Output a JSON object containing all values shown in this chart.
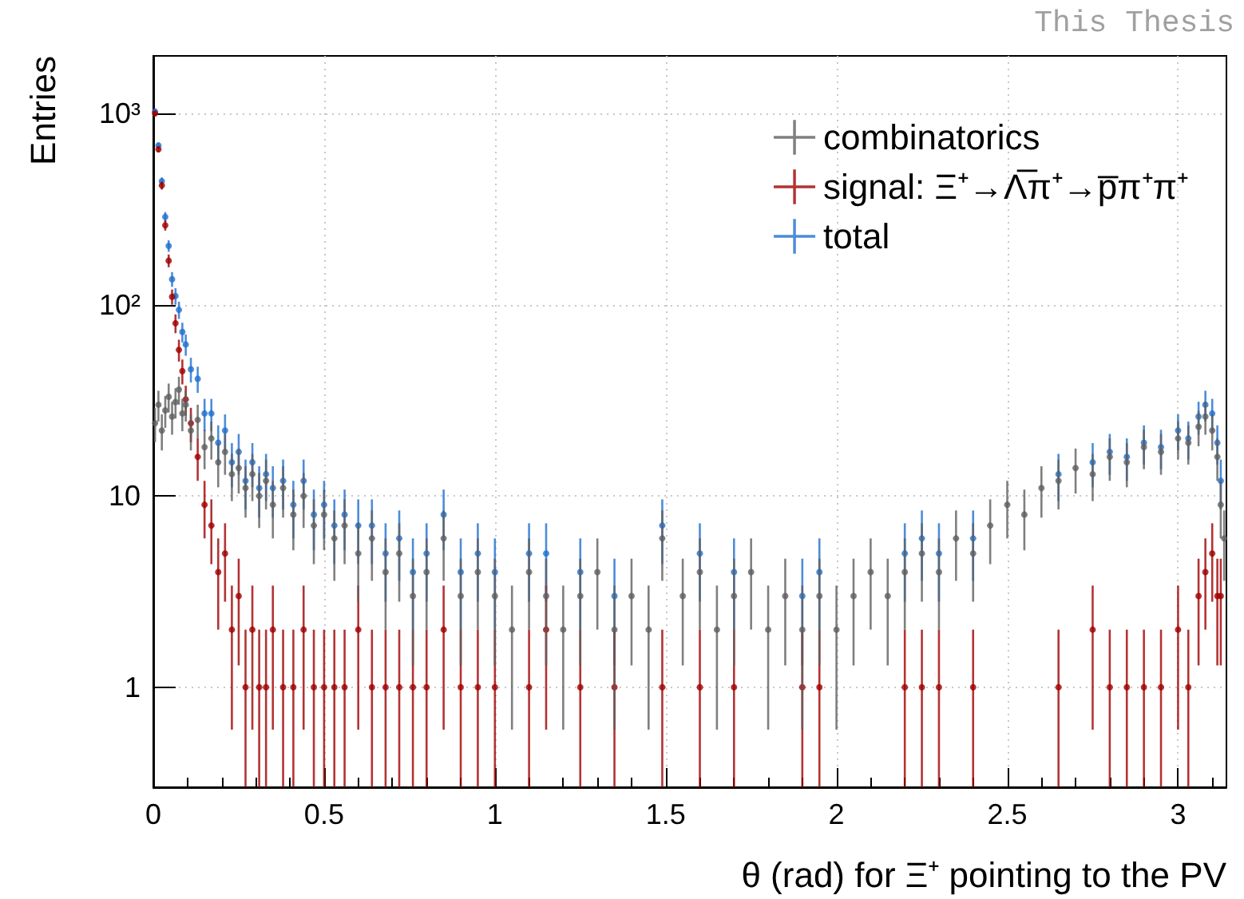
{
  "chart_data": {
    "type": "scatter",
    "xlabel": "θ (rad) for Ξ⁺ pointing to the PV",
    "ylabel": "Entries",
    "annotations": [
      "This Thesis"
    ],
    "x": [
      0.005,
      0.015,
      0.025,
      0.035,
      0.045,
      0.055,
      0.065,
      0.075,
      0.085,
      0.095,
      0.11,
      0.13,
      0.15,
      0.17,
      0.19,
      0.21,
      0.23,
      0.25,
      0.27,
      0.29,
      0.31,
      0.33,
      0.35,
      0.38,
      0.41,
      0.44,
      0.47,
      0.5,
      0.53,
      0.56,
      0.6,
      0.64,
      0.68,
      0.72,
      0.76,
      0.8,
      0.85,
      0.9,
      0.95,
      1.0,
      1.05,
      1.1,
      1.15,
      1.2,
      1.25,
      1.3,
      1.35,
      1.4,
      1.45,
      1.49,
      1.55,
      1.6,
      1.65,
      1.7,
      1.75,
      1.8,
      1.85,
      1.9,
      1.95,
      2.0,
      2.05,
      2.1,
      2.15,
      2.2,
      2.25,
      2.3,
      2.35,
      2.4,
      2.45,
      2.5,
      2.55,
      2.6,
      2.65,
      2.7,
      2.75,
      2.8,
      2.85,
      2.9,
      2.95,
      3.0,
      3.03,
      3.06,
      3.08,
      3.1,
      3.115,
      3.125,
      3.135
    ],
    "series": [
      {
        "name": "combinatorics",
        "color": "#5f5f5f",
        "values": [
          24,
          30,
          22,
          28,
          33,
          26,
          31,
          36,
          27,
          30,
          22,
          25,
          18,
          20,
          15,
          17,
          13,
          14,
          11,
          13,
          10,
          12,
          9,
          11,
          8,
          10,
          7,
          8,
          6,
          7,
          5,
          6,
          4,
          5,
          3,
          4,
          6,
          3,
          4,
          3,
          2,
          4,
          3,
          2,
          3,
          4,
          2,
          3,
          2,
          6,
          3,
          4,
          2,
          3,
          4,
          2,
          3,
          2,
          3,
          2,
          3,
          4,
          3,
          4,
          5,
          4,
          6,
          5,
          7,
          9,
          8,
          11,
          12,
          14,
          13,
          16,
          15,
          18,
          17,
          20,
          19,
          23,
          26,
          22,
          16,
          9,
          6
        ],
        "errors": [
          4.9,
          5.5,
          4.7,
          5.3,
          5.7,
          5.1,
          5.6,
          6,
          5.2,
          5.5,
          4.7,
          5,
          4.2,
          4.5,
          3.9,
          4.1,
          3.6,
          3.7,
          3.3,
          3.6,
          3.2,
          3.5,
          3,
          3.3,
          2.8,
          3.2,
          2.6,
          2.8,
          2.4,
          2.6,
          2.2,
          2.4,
          2,
          2.2,
          1.7,
          2,
          2.4,
          1.7,
          2,
          1.7,
          1.4,
          2,
          1.7,
          1.4,
          1.7,
          2,
          1.4,
          1.7,
          1.4,
          2.4,
          1.7,
          2,
          1.4,
          1.7,
          2,
          1.4,
          1.7,
          1.4,
          1.7,
          1.4,
          1.7,
          2,
          1.7,
          2,
          2.2,
          2,
          2.4,
          2.2,
          2.6,
          3,
          2.8,
          3.3,
          3.5,
          3.7,
          3.6,
          4,
          3.9,
          4.2,
          4.1,
          4.5,
          4.4,
          4.8,
          5.1,
          4.7,
          4,
          3,
          2.4
        ]
      },
      {
        "name": "signal: Ξ⁺→Λ̅π⁺→p̅π⁺π⁺",
        "color": "#a00000",
        "values": [
          1000,
          650,
          420,
          260,
          170,
          110,
          80,
          58,
          45,
          32,
          24,
          16,
          9,
          7,
          4,
          5,
          2,
          3,
          1,
          2,
          1,
          1,
          2,
          1,
          1,
          2,
          1,
          1,
          1,
          1,
          2,
          1,
          1,
          1,
          1,
          1,
          2,
          1,
          1,
          1,
          null,
          1,
          2,
          null,
          1,
          null,
          1,
          null,
          null,
          1,
          null,
          1,
          null,
          1,
          null,
          null,
          null,
          1,
          1,
          null,
          null,
          null,
          null,
          1,
          1,
          1,
          null,
          1,
          null,
          null,
          null,
          null,
          1,
          null,
          2,
          1,
          1,
          1,
          1,
          2,
          1,
          3,
          4,
          5,
          3,
          3,
          null
        ],
        "errors": [
          32,
          25,
          20,
          16,
          13,
          10,
          9,
          7.6,
          6.7,
          5.7,
          4.9,
          4,
          3,
          2.6,
          2,
          2.2,
          1.4,
          1.7,
          [
            0.3,
            2
          ],
          1.4,
          [
            0.3,
            2
          ],
          [
            0.3,
            2
          ],
          1.4,
          [
            0.3,
            2
          ],
          [
            0.3,
            2
          ],
          1.4,
          [
            0.3,
            2
          ],
          [
            0.3,
            2
          ],
          [
            0.3,
            2
          ],
          [
            0.3,
            2
          ],
          1.4,
          [
            0.3,
            2
          ],
          [
            0.3,
            2
          ],
          [
            0.3,
            2
          ],
          [
            0.3,
            2
          ],
          [
            0.3,
            2
          ],
          1.4,
          [
            0.3,
            2
          ],
          [
            0.3,
            2
          ],
          [
            0.3,
            2
          ],
          null,
          [
            0.3,
            2
          ],
          1.4,
          null,
          [
            0.3,
            2
          ],
          null,
          [
            0.3,
            2
          ],
          null,
          null,
          [
            0.3,
            2
          ],
          null,
          [
            0.3,
            2
          ],
          null,
          [
            0.3,
            2
          ],
          null,
          null,
          null,
          [
            0.3,
            2
          ],
          [
            0.3,
            2
          ],
          null,
          null,
          null,
          null,
          [
            0.3,
            2
          ],
          [
            0.3,
            2
          ],
          [
            0.3,
            2
          ],
          null,
          [
            0.3,
            2
          ],
          null,
          null,
          null,
          null,
          [
            0.3,
            2
          ],
          null,
          1.4,
          [
            0.3,
            2
          ],
          [
            0.3,
            2
          ],
          [
            0.3,
            2
          ],
          [
            0.3,
            2
          ],
          1.4,
          [
            0.3,
            2
          ],
          1.7,
          2,
          2.2,
          1.7,
          1.7,
          null
        ]
      },
      {
        "name": "total",
        "color": "#1f6fd0",
        "values": [
          1024,
          680,
          442,
          288,
          203,
          136,
          111,
          94,
          72,
          62,
          46,
          41,
          27,
          27,
          19,
          22,
          15,
          17,
          12,
          15,
          11,
          13,
          11,
          12,
          9,
          12,
          8,
          9,
          7,
          8,
          7,
          7,
          5,
          6,
          4,
          5,
          8,
          4,
          5,
          4,
          null,
          5,
          5,
          null,
          4,
          null,
          3,
          null,
          null,
          7,
          null,
          5,
          null,
          4,
          null,
          null,
          null,
          3,
          4,
          null,
          null,
          null,
          null,
          5,
          6,
          5,
          null,
          6,
          null,
          null,
          null,
          null,
          13,
          null,
          15,
          17,
          16,
          19,
          18,
          22,
          20,
          26,
          30,
          27,
          19,
          12,
          null
        ],
        "errors": [
          32,
          26,
          21,
          17,
          14,
          12,
          11,
          9.7,
          8.5,
          7.9,
          6.8,
          6.4,
          5.2,
          5.2,
          4.4,
          4.7,
          3.9,
          4.1,
          3.5,
          3.9,
          3.3,
          3.6,
          3.3,
          3.5,
          3,
          3.5,
          2.8,
          3,
          2.6,
          2.8,
          2.6,
          2.6,
          2.2,
          2.4,
          2,
          2.2,
          2.8,
          2,
          2.2,
          2,
          null,
          2.2,
          2.2,
          null,
          2,
          null,
          1.7,
          null,
          null,
          2.6,
          null,
          2.2,
          null,
          2,
          null,
          null,
          null,
          1.7,
          2,
          null,
          null,
          null,
          null,
          2.2,
          2.4,
          2.2,
          null,
          2.4,
          null,
          null,
          null,
          null,
          3.6,
          null,
          3.9,
          4.1,
          4,
          4.4,
          4.2,
          4.7,
          4.5,
          5.1,
          5.5,
          5.2,
          4.4,
          3.5,
          null
        ]
      }
    ],
    "xlim": [
      0,
      3.1416
    ],
    "xticks": [
      0,
      0.5,
      1,
      1.5,
      2,
      2.5,
      3
    ],
    "ylim": [
      0.3,
      2000
    ],
    "yticks": [
      1,
      10,
      {
        "value": 100,
        "label": "10²"
      },
      {
        "value": 1000,
        "label": "10³"
      }
    ],
    "log": "y",
    "grid": true,
    "legend": "top right",
    "marker": "circle"
  }
}
